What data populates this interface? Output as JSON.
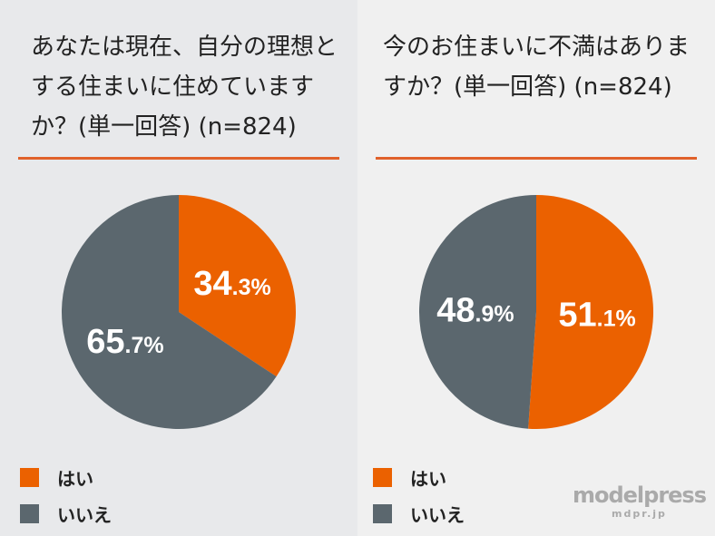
{
  "colors": {
    "yes": "#eb6100",
    "no": "#5b676e"
  },
  "chart_data": [
    {
      "type": "pie",
      "title": "あなたは現在、自分の理想とする住まいに住めていますか？(単一回答) (n=824)",
      "slices": [
        {
          "name": "はい",
          "value": 34.3,
          "label": "34.3%"
        },
        {
          "name": "いいえ",
          "value": 65.7,
          "label": "65.7%"
        }
      ],
      "legend": [
        "はい",
        "いいえ"
      ],
      "legend_position": "bottom-left"
    },
    {
      "type": "pie",
      "title": "今のお住まいに不満はありますか？(単一回答) (n=824)",
      "slices": [
        {
          "name": "はい",
          "value": 51.1,
          "label": "51.1%"
        },
        {
          "name": "いいえ",
          "value": 48.9,
          "label": "48.9%"
        }
      ],
      "legend": [
        "はい",
        "いいえ"
      ],
      "legend_position": "bottom-left"
    }
  ],
  "watermark": {
    "brand": "modelpress",
    "url": "mdpr.jp"
  }
}
